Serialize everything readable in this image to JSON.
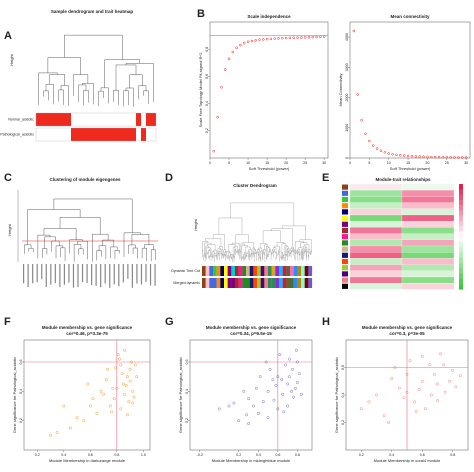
{
  "chart_data": [
    {
      "type": "heatmap",
      "label": "A",
      "title": "Sample dendrogram and trait heatmap",
      "ylabel": "Height",
      "color": "#ee2a1f",
      "rows": [
        "Normal_acidotic",
        "Pathological_acidotic"
      ],
      "values": [
        [
          1,
          1,
          1,
          1,
          1,
          1,
          1,
          0,
          0,
          0,
          0,
          0,
          0,
          0,
          0,
          0,
          0,
          0,
          0,
          0,
          1,
          0,
          1,
          1
        ],
        [
          0,
          0,
          0,
          0,
          0,
          0,
          0,
          1,
          1,
          1,
          1,
          1,
          1,
          1,
          1,
          1,
          1,
          1,
          1,
          1,
          0,
          1,
          0,
          0
        ]
      ]
    },
    {
      "type": "scatter",
      "label": "B",
      "title": "Scale independence",
      "xlabel": "Soft Threshold (power)",
      "ylabel": "Scale Free Topology Model Fit,signed R^2",
      "color": "#e8211b",
      "x": [
        1,
        2,
        3,
        4,
        5,
        6,
        7,
        8,
        9,
        10,
        11,
        12,
        13,
        14,
        15,
        16,
        17,
        18,
        19,
        20,
        21,
        22,
        23,
        24,
        25,
        26,
        27,
        28,
        29,
        30
      ],
      "values": [
        0.05,
        0.3,
        0.52,
        0.65,
        0.73,
        0.78,
        0.81,
        0.83,
        0.845,
        0.855,
        0.86,
        0.865,
        0.87,
        0.872,
        0.874,
        0.876,
        0.878,
        0.88,
        0.881,
        0.882,
        0.883,
        0.884,
        0.885,
        0.886,
        0.887,
        0.888,
        0.889,
        0.89,
        0.891,
        0.892
      ],
      "xlim": [
        0,
        31
      ],
      "ylim": [
        0,
        1
      ],
      "xticks": [
        0,
        5,
        10,
        15,
        20,
        25,
        30
      ],
      "yticks": [
        0.2,
        0.4,
        0.6,
        0.8
      ],
      "hline": 0.9
    },
    {
      "type": "scatter",
      "title": "Mean connectivity",
      "xlabel": "Soft Threshold (power)",
      "ylabel": "Mean Connectivity",
      "color": "#e8211b",
      "x": [
        1,
        2,
        3,
        4,
        5,
        6,
        7,
        8,
        9,
        10,
        11,
        12,
        13,
        14,
        15,
        16,
        17,
        18,
        19,
        20,
        21,
        22,
        23,
        24,
        25,
        26,
        27,
        28,
        29,
        30
      ],
      "values": [
        4200,
        2100,
        1250,
        800,
        560,
        410,
        310,
        240,
        190,
        150,
        125,
        105,
        90,
        78,
        68,
        60,
        53,
        47,
        42,
        38,
        34,
        31,
        28,
        26,
        24,
        22,
        20,
        19,
        18,
        17
      ],
      "xlim": [
        0,
        31
      ],
      "ylim": [
        0,
        4500
      ],
      "xticks": [
        0,
        5,
        10,
        15,
        20,
        25,
        30
      ],
      "yticks": [
        0,
        1000,
        2000,
        3000,
        4000
      ]
    },
    {
      "type": "dendrogram",
      "label": "C",
      "title": "Clustering of module eigengenes",
      "ylabel": "Height",
      "color": "#ee2a1f"
    },
    {
      "type": "dendrogram",
      "label": "D",
      "title": "Cluster Dendrogram",
      "ylabel": "Height",
      "rows": [
        "Dynamic Tree Cut",
        "Merged dynamic"
      ],
      "colors": [
        [
          "#8b4513",
          "#ffc0cb",
          "#4169e1",
          "#32cd32",
          "#ff8c00",
          "#000080",
          "#ffff00",
          "#800080",
          "#00ced1",
          "#a52a2a",
          "#ff1493",
          "#228b22",
          "#d2b48c",
          "#191970",
          "#ff4500",
          "#9acd32",
          "#4b0082",
          "#f08080",
          "#2e8b57",
          "#daa520",
          "#8a2be2",
          "#00bfff",
          "#dc143c",
          "#556b2f",
          "#ff69b4",
          "#1e90ff",
          "#b8860b",
          "#7fffd4",
          "#800000",
          "#6a5acd"
        ],
        [
          "#8b4513",
          "#ffc0cb",
          "#4169e1",
          "#4169e1",
          "#ff8c00",
          "#000080",
          "#ffff00",
          "#800080",
          "#800080",
          "#a52a2a",
          "#ff1493",
          "#228b22",
          "#228b22",
          "#191970",
          "#ff4500",
          "#9acd32",
          "#4b0082",
          "#f08080",
          "#2e8b57",
          "#2e8b57",
          "#8a2be2",
          "#00bfff",
          "#dc143c",
          "#556b2f",
          "#556b2f",
          "#1e90ff",
          "#b8860b",
          "#7fffd4",
          "#800000",
          "#6a5acd"
        ]
      ]
    },
    {
      "type": "heatmap",
      "label": "E",
      "title": "Module-trait relationships",
      "rows": [
        "#8b4513",
        "#4169e1",
        "#32cd32",
        "#ff8c00",
        "#000080",
        "#ffff00",
        "#800080",
        "#a52a2a",
        "#ff1493",
        "#228b22",
        "#d2b48c",
        "#191970",
        "#ff4500",
        "#9acd32",
        "#4b0082",
        "#f08080",
        "#000000"
      ],
      "values": [
        [
          0.1,
          -0.1
        ],
        [
          -0.5,
          0.5
        ],
        [
          -0.6,
          0.6
        ],
        [
          -0.3,
          0.3
        ],
        [
          0.2,
          -0.2
        ],
        [
          -0.7,
          0.7
        ],
        [
          -0.2,
          0.2
        ],
        [
          0.6,
          -0.6
        ],
        [
          0.3,
          -0.3
        ],
        [
          -0.4,
          0.4
        ],
        [
          0.5,
          -0.5
        ],
        [
          0.7,
          -0.7
        ],
        [
          -0.3,
          0.3
        ],
        [
          0.4,
          -0.4
        ],
        [
          0.2,
          -0.2
        ],
        [
          0.6,
          -0.6
        ],
        [
          -0.2,
          0.2
        ]
      ]
    },
    {
      "type": "scatter",
      "label": "F",
      "title": "Module membership vs. gene significance",
      "subtitle": "cor=0.46, p=3.3e-75",
      "xlabel": "Module Membership in darkorange module",
      "ylabel": "Gene significance for Pathological_acidotic",
      "color": "#f39a2b",
      "x": [
        0.85,
        0.9,
        0.78,
        0.82,
        0.88,
        0.92,
        0.75,
        0.7,
        0.86,
        0.8,
        0.94,
        0.83,
        0.65,
        0.72,
        0.89,
        0.91,
        0.6,
        0.55,
        0.84,
        0.87,
        0.79,
        0.93,
        0.5,
        0.45,
        0.68,
        0.76,
        0.81,
        0.9,
        0.35,
        0.4,
        0.62,
        0.73,
        0.86,
        0.95,
        0.3,
        0.58,
        0.88,
        0.77,
        0.83,
        0.92
      ],
      "values": [
        0.45,
        0.55,
        0.35,
        0.62,
        0.5,
        0.4,
        0.3,
        0.38,
        0.68,
        0.42,
        0.58,
        0.28,
        0.25,
        0.48,
        0.33,
        0.6,
        0.3,
        0.2,
        0.52,
        0.44,
        0.56,
        0.36,
        0.22,
        0.15,
        0.4,
        0.26,
        0.65,
        0.47,
        0.12,
        0.3,
        0.35,
        0.55,
        0.38,
        0.5,
        0.1,
        0.45,
        0.24,
        0.42,
        0.58,
        0.32
      ],
      "xlim": [
        0.1,
        1.05
      ],
      "ylim": [
        0,
        0.75
      ],
      "xticks": [
        0.2,
        0.4,
        0.6,
        0.8,
        {
          "value": 1,
          "label": "1.0"
        }
      ],
      "yticks": [
        0.2,
        0.4,
        0.6
      ],
      "vline": 0.8,
      "hline": 0.6
    },
    {
      "type": "scatter",
      "label": "G",
      "title": "Module membership vs. gene significance",
      "subtitle": "cor=0.34, p=6.5e-15",
      "xlabel": "Module Membership in midnightblue module",
      "ylabel": "Gene significance for Pathological_acidotic",
      "color": "#7b72c9",
      "x": [
        0.1,
        0.3,
        0.5,
        0.6,
        0.7,
        0.75,
        0.8,
        0.4,
        0.2,
        0.65,
        0.55,
        0.72,
        0.35,
        0.78,
        0.45,
        0.6,
        0.82,
        0.25,
        0.68,
        0.5,
        0,
        0.58,
        0.76,
        0.42,
        0.62,
        0.7,
        0.3,
        0.8,
        0.52,
        0.66,
        0.15,
        0.74,
        0.48,
        0.64,
        0.84,
        0.38,
        0.56,
        0.72,
        0.28,
        0.79
      ],
      "values": [
        0.3,
        0.35,
        0.4,
        0.5,
        0.45,
        0.55,
        0.6,
        0.25,
        0.2,
        0.38,
        0.48,
        0.62,
        0.3,
        0.42,
        0.33,
        0.28,
        0.52,
        0.4,
        0.58,
        0.22,
        0.28,
        0.44,
        0.36,
        0.5,
        0.65,
        0.3,
        0.18,
        0.46,
        0.55,
        0.26,
        0.32,
        0.4,
        0.6,
        0.48,
        0.38,
        0.42,
        0.34,
        0.5,
        0.24,
        0.68
      ],
      "xlim": [
        -0.3,
        0.95
      ],
      "ylim": [
        0,
        0.75
      ],
      "xticks": [
        -0.2,
        0.2,
        0.4,
        0.6,
        0.8
      ],
      "yticks": [
        0.2,
        0.4,
        0.6
      ],
      "vline": 0.6,
      "hline": 0.6
    },
    {
      "type": "scatter",
      "label": "H",
      "title": "Module membership vs. gene significance",
      "subtitle": "cor=0.3, p=3e-05",
      "xlabel": "Module Membership in coral4 module",
      "ylabel": "Gene significance for Pathological_acidotic",
      "color": "#f0867a",
      "x": [
        0.2,
        0.3,
        0.45,
        0.5,
        0.55,
        0.6,
        0.65,
        0.7,
        0.75,
        0.8,
        0.35,
        0.4,
        0.48,
        0.52,
        0.58,
        0.62,
        0.68,
        0.72,
        0.78,
        0.82,
        0.25,
        0.42,
        0.56,
        0.66,
        0.74,
        0.85,
        0.38,
        0.5,
        0.6,
        0.7
      ],
      "values": [
        0.3,
        0.4,
        0.45,
        0.55,
        0.35,
        0.5,
        0.62,
        0.48,
        0.42,
        0.58,
        0.25,
        0.52,
        0.38,
        0.65,
        0.44,
        0.3,
        0.55,
        0.7,
        0.5,
        0.46,
        0.35,
        0.6,
        0.28,
        0.4,
        0.62,
        0.54,
        0.2,
        0.42,
        0.68,
        0.36
      ],
      "xlim": [
        0.1,
        0.9
      ],
      "ylim": [
        0,
        0.8
      ],
      "xticks": [
        0.2,
        0.4,
        0.6,
        0.8
      ],
      "yticks": [
        0.2,
        0.4,
        0.6
      ],
      "vline": 0.5,
      "hline": 0.6
    }
  ]
}
